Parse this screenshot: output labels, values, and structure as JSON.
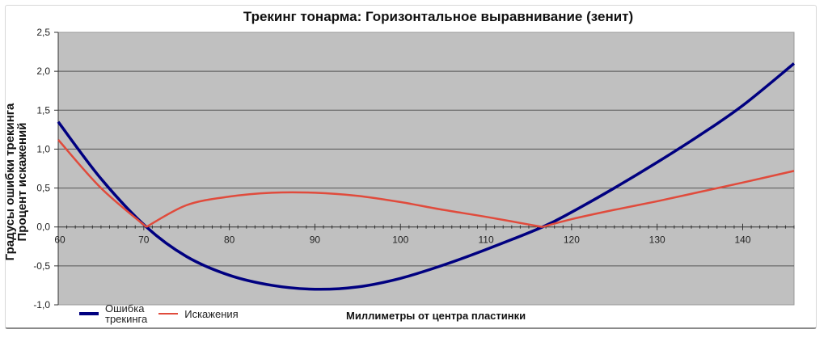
{
  "chart_data": {
    "type": "line",
    "title": "Трекинг тонарма: Горизонтальное выравнивание (зенит)",
    "xlabel": "Миллиметры от центра пластинки",
    "ylabel_lines": [
      "Градусы ошибки трекинга",
      "Процент искажений"
    ],
    "xlim": [
      60,
      146
    ],
    "ylim": [
      -1.0,
      2.5
    ],
    "x_ticks": [
      60,
      70,
      80,
      90,
      100,
      110,
      120,
      130,
      140
    ],
    "x_tick_labels": [
      "60",
      "70",
      "80",
      "90",
      "100",
      "110",
      "120",
      "130",
      "140"
    ],
    "y_ticks": [
      2.5,
      2.0,
      1.5,
      1.0,
      0.5,
      0.0,
      -0.5,
      -1.0
    ],
    "y_tick_labels": [
      "2,5",
      "2,0",
      "1,5",
      "1,0",
      "0,5",
      "0,0",
      "-0,5",
      "-1,0"
    ],
    "grid": "horizontal",
    "background": "#c0c0c0",
    "legend_position": "bottom-left",
    "x": [
      60,
      65,
      70.3,
      75,
      80,
      85,
      90,
      95,
      100,
      105,
      110,
      116.6,
      120,
      125,
      130,
      135,
      140,
      146
    ],
    "series": [
      {
        "name": "Ошибка трекинга",
        "color": "#000080",
        "values": [
          1.35,
          0.62,
          0.0,
          -0.38,
          -0.62,
          -0.75,
          -0.8,
          -0.77,
          -0.66,
          -0.49,
          -0.29,
          0.0,
          0.19,
          0.5,
          0.83,
          1.18,
          1.56,
          2.1
        ]
      },
      {
        "name": "Искажения",
        "color": "#e04b3c",
        "values": [
          1.12,
          0.5,
          0.0,
          0.28,
          0.39,
          0.44,
          0.44,
          0.4,
          0.32,
          0.22,
          0.13,
          0.0,
          0.1,
          0.22,
          0.33,
          0.45,
          0.57,
          0.72
        ]
      }
    ]
  },
  "legend": {
    "items": [
      {
        "label_line1": "Ошибка",
        "label_line2": "трекинга",
        "color": "#000080"
      },
      {
        "label_line1": "Искажения",
        "label_line2": "",
        "color": "#e04b3c"
      }
    ]
  }
}
